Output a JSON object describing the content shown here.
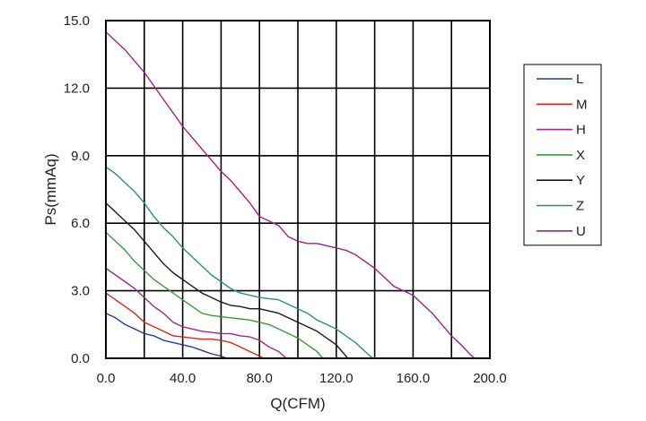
{
  "chart_data": {
    "type": "line",
    "title": "",
    "xlabel": "Q(CFM)",
    "ylabel": "Ps(mmAq)",
    "xlim": [
      0,
      200
    ],
    "ylim": [
      0,
      15
    ],
    "x_ticks": [
      "0.0",
      "40.0",
      "80.0",
      "120.0",
      "160.0",
      "200.0"
    ],
    "y_ticks": [
      "0.0",
      "3.0",
      "6.0",
      "9.0",
      "12.0",
      "15.0"
    ],
    "grid": true,
    "legend_position": "right",
    "series": [
      {
        "name": "L",
        "color": "#1f3a93",
        "points": [
          [
            0,
            2.0
          ],
          [
            5,
            1.8
          ],
          [
            10,
            1.5
          ],
          [
            15,
            1.3
          ],
          [
            20,
            1.1
          ],
          [
            25,
            1.0
          ],
          [
            30,
            0.8
          ],
          [
            35,
            0.7
          ],
          [
            40,
            0.6
          ],
          [
            45,
            0.5
          ],
          [
            50,
            0.35
          ],
          [
            55,
            0.2
          ],
          [
            60,
            0.1
          ],
          [
            63,
            0.0
          ]
        ]
      },
      {
        "name": "M",
        "color": "#e2231a",
        "points": [
          [
            0,
            2.9
          ],
          [
            5,
            2.6
          ],
          [
            10,
            2.3
          ],
          [
            15,
            2.0
          ],
          [
            20,
            1.6
          ],
          [
            25,
            1.4
          ],
          [
            30,
            1.2
          ],
          [
            35,
            1.0
          ],
          [
            40,
            0.95
          ],
          [
            45,
            0.9
          ],
          [
            50,
            0.85
          ],
          [
            55,
            0.85
          ],
          [
            60,
            0.8
          ],
          [
            65,
            0.7
          ],
          [
            70,
            0.5
          ],
          [
            75,
            0.3
          ],
          [
            80,
            0.1
          ],
          [
            82,
            0.0
          ]
        ]
      },
      {
        "name": "H",
        "color": "#9a2a8e",
        "points": [
          [
            0,
            4.0
          ],
          [
            5,
            3.7
          ],
          [
            10,
            3.4
          ],
          [
            15,
            3.1
          ],
          [
            20,
            2.7
          ],
          [
            25,
            2.3
          ],
          [
            30,
            2.0
          ],
          [
            35,
            1.6
          ],
          [
            40,
            1.4
          ],
          [
            45,
            1.3
          ],
          [
            50,
            1.2
          ],
          [
            55,
            1.15
          ],
          [
            60,
            1.1
          ],
          [
            65,
            1.1
          ],
          [
            70,
            1.0
          ],
          [
            75,
            0.95
          ],
          [
            80,
            0.8
          ],
          [
            85,
            0.5
          ],
          [
            90,
            0.3
          ],
          [
            94,
            0.0
          ]
        ]
      },
      {
        "name": "X",
        "color": "#3a9a3a",
        "points": [
          [
            0,
            5.6
          ],
          [
            5,
            5.2
          ],
          [
            10,
            4.8
          ],
          [
            15,
            4.3
          ],
          [
            20,
            3.9
          ],
          [
            25,
            3.5
          ],
          [
            30,
            3.2
          ],
          [
            35,
            2.9
          ],
          [
            40,
            2.6
          ],
          [
            45,
            2.3
          ],
          [
            50,
            2.0
          ],
          [
            55,
            1.9
          ],
          [
            60,
            1.85
          ],
          [
            65,
            1.8
          ],
          [
            70,
            1.75
          ],
          [
            75,
            1.7
          ],
          [
            80,
            1.6
          ],
          [
            85,
            1.5
          ],
          [
            90,
            1.3
          ],
          [
            95,
            1.1
          ],
          [
            100,
            0.9
          ],
          [
            105,
            0.6
          ],
          [
            110,
            0.3
          ],
          [
            113,
            0.0
          ]
        ]
      },
      {
        "name": "Y",
        "color": "#1a1a1a",
        "points": [
          [
            0,
            6.9
          ],
          [
            5,
            6.5
          ],
          [
            10,
            6.1
          ],
          [
            15,
            5.7
          ],
          [
            20,
            5.2
          ],
          [
            25,
            4.7
          ],
          [
            30,
            4.2
          ],
          [
            35,
            3.8
          ],
          [
            40,
            3.5
          ],
          [
            45,
            3.2
          ],
          [
            50,
            2.9
          ],
          [
            55,
            2.7
          ],
          [
            60,
            2.5
          ],
          [
            65,
            2.35
          ],
          [
            70,
            2.3
          ],
          [
            75,
            2.2
          ],
          [
            80,
            2.2
          ],
          [
            85,
            2.1
          ],
          [
            90,
            2.0
          ],
          [
            95,
            1.8
          ],
          [
            100,
            1.6
          ],
          [
            105,
            1.4
          ],
          [
            110,
            1.2
          ],
          [
            115,
            0.9
          ],
          [
            120,
            0.6
          ],
          [
            125,
            0.1
          ],
          [
            126,
            0.0
          ]
        ]
      },
      {
        "name": "Z",
        "color": "#2e8b8b",
        "points": [
          [
            0,
            8.5
          ],
          [
            5,
            8.2
          ],
          [
            10,
            7.8
          ],
          [
            15,
            7.4
          ],
          [
            20,
            6.9
          ],
          [
            25,
            6.3
          ],
          [
            30,
            5.8
          ],
          [
            35,
            5.4
          ],
          [
            40,
            4.9
          ],
          [
            45,
            4.5
          ],
          [
            50,
            4.1
          ],
          [
            55,
            3.7
          ],
          [
            60,
            3.4
          ],
          [
            65,
            3.1
          ],
          [
            70,
            2.9
          ],
          [
            75,
            2.8
          ],
          [
            80,
            2.7
          ],
          [
            85,
            2.65
          ],
          [
            90,
            2.6
          ],
          [
            95,
            2.4
          ],
          [
            100,
            2.2
          ],
          [
            105,
            2.0
          ],
          [
            110,
            1.7
          ],
          [
            115,
            1.5
          ],
          [
            120,
            1.3
          ],
          [
            125,
            1.0
          ],
          [
            130,
            0.7
          ],
          [
            135,
            0.3
          ],
          [
            139,
            0.0
          ]
        ]
      },
      {
        "name": "U",
        "color": "#a0208a",
        "points": [
          [
            0,
            14.5
          ],
          [
            5,
            14.1
          ],
          [
            10,
            13.7
          ],
          [
            15,
            13.2
          ],
          [
            20,
            12.7
          ],
          [
            25,
            12.1
          ],
          [
            30,
            11.5
          ],
          [
            35,
            10.9
          ],
          [
            40,
            10.3
          ],
          [
            45,
            9.8
          ],
          [
            50,
            9.3
          ],
          [
            55,
            8.8
          ],
          [
            60,
            8.3
          ],
          [
            65,
            7.9
          ],
          [
            70,
            7.4
          ],
          [
            75,
            6.9
          ],
          [
            80,
            6.3
          ],
          [
            85,
            6.1
          ],
          [
            90,
            5.9
          ],
          [
            95,
            5.4
          ],
          [
            100,
            5.2
          ],
          [
            105,
            5.1
          ],
          [
            110,
            5.1
          ],
          [
            115,
            5.0
          ],
          [
            120,
            4.9
          ],
          [
            125,
            4.8
          ],
          [
            130,
            4.6
          ],
          [
            135,
            4.3
          ],
          [
            140,
            4.0
          ],
          [
            145,
            3.6
          ],
          [
            150,
            3.2
          ],
          [
            155,
            3.0
          ],
          [
            160,
            2.8
          ],
          [
            165,
            2.4
          ],
          [
            170,
            2.0
          ],
          [
            175,
            1.5
          ],
          [
            180,
            1.0
          ],
          [
            185,
            0.6
          ],
          [
            190,
            0.15
          ],
          [
            192,
            0.0
          ]
        ]
      }
    ]
  }
}
